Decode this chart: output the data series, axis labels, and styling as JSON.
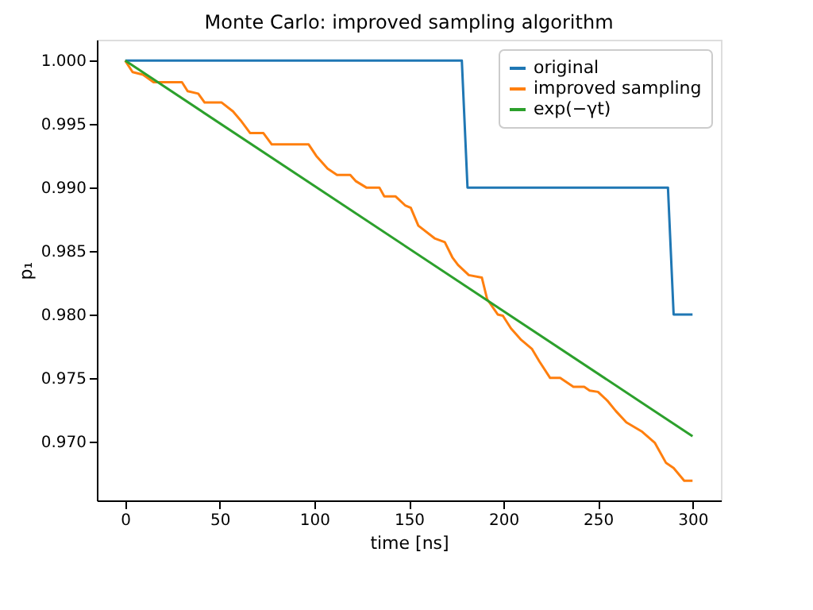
{
  "chart_data": {
    "type": "line",
    "title": "Monte Carlo: improved sampling algorithm",
    "xlabel": "time [ns]",
    "ylabel": "p₁",
    "xlim": [
      -15,
      315
    ],
    "xticks": [
      0,
      50,
      100,
      150,
      200,
      250,
      300
    ],
    "ylim": [
      0.96535,
      1.00165
    ],
    "yticks": [
      {
        "value": 0.97,
        "label": "0.970"
      },
      {
        "value": 0.975,
        "label": "0.975"
      },
      {
        "value": 0.98,
        "label": "0.980"
      },
      {
        "value": 0.985,
        "label": "0.985"
      },
      {
        "value": 0.99,
        "label": "0.990"
      },
      {
        "value": 0.995,
        "label": "0.995"
      },
      {
        "value": 1.0,
        "label": "1.000"
      }
    ],
    "grid": false,
    "legend": "top right",
    "line_style": "solid",
    "marker": "none",
    "series": [
      {
        "name": "original",
        "color": "#1f77b4",
        "x": [
          0,
          178,
          181,
          287,
          290,
          300
        ],
        "values": [
          1.0,
          1.0,
          0.99,
          0.99,
          0.98,
          0.98
        ]
      },
      {
        "name": "improved sampling",
        "color": "#ff7f0e",
        "x": [
          0,
          3.9,
          9.4,
          15,
          30,
          33,
          38.6,
          42,
          51,
          57,
          61,
          66,
          73,
          77.5,
          97,
          101,
          107,
          112,
          119,
          122,
          127.5,
          134.4,
          137,
          143,
          148,
          151,
          155,
          163.6,
          169,
          173,
          176,
          181.7,
          188.6,
          191.4,
          197,
          199.7,
          204,
          209.4,
          215,
          219,
          224.7,
          230,
          237,
          242.7,
          245.6,
          250,
          255,
          259.4,
          265,
          273,
          280,
          286,
          290,
          295.6,
          300
        ],
        "values": [
          1.0,
          0.9991,
          0.9989,
          0.9983,
          0.9983,
          0.9976,
          0.9974,
          0.9967,
          0.9967,
          0.996,
          0.9953,
          0.9943,
          0.9943,
          0.9934,
          0.9934,
          0.9925,
          0.9915,
          0.991,
          0.991,
          0.9905,
          0.99,
          0.99,
          0.9893,
          0.9893,
          0.9886,
          0.9884,
          0.987,
          0.986,
          0.9857,
          0.9845,
          0.9839,
          0.9831,
          0.9829,
          0.9812,
          0.98,
          0.9799,
          0.9789,
          0.978,
          0.9773,
          0.9763,
          0.975,
          0.975,
          0.9743,
          0.9743,
          0.974,
          0.9739,
          0.9732,
          0.9724,
          0.9715,
          0.9708,
          0.9699,
          0.9683,
          0.9679,
          0.9669,
          0.9669
        ]
      },
      {
        "name": "exp(−γt)",
        "color": "#2ca02c",
        "x": [
          0,
          300
        ],
        "values": [
          1.0,
          0.9704
        ]
      }
    ]
  }
}
